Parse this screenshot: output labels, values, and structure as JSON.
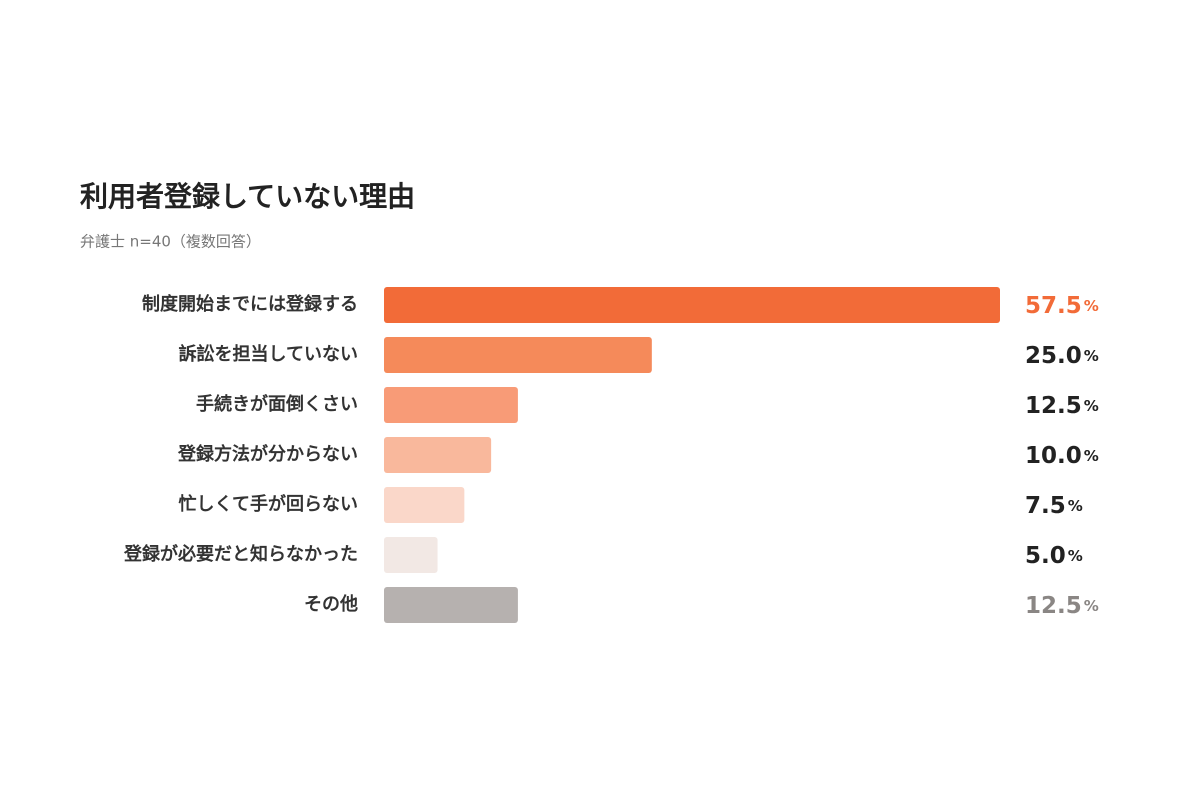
{
  "chart_data": {
    "type": "hbar",
    "title": "利用者登録していない理由",
    "subtitle": "弁護士 n=40（複数回答）",
    "categories": [
      "制度開始までには登録する",
      "訴訟を担当していない",
      "手続きが面倒くさい",
      "登録方法が分からない",
      "忙しくて手が回らない",
      "登録が必要だと知らなかった",
      "その他"
    ],
    "values": [
      57.5,
      25.0,
      12.5,
      10.0,
      7.5,
      5.0,
      12.5
    ],
    "value_labels": [
      "57.5%",
      "25.0%",
      "12.5%",
      "10.0%",
      "7.5%",
      "5.0%",
      "12.5%"
    ],
    "colors": [
      "#f26b38",
      "#f58a5a",
      "#f89b77",
      "#f9b89c",
      "#fad7c9",
      "#f2e8e4",
      "#b6b1af"
    ],
    "value_label_colors": [
      "#f26b38",
      "#222222",
      "#222222",
      "#222222",
      "#222222",
      "#222222",
      "#8a8684"
    ]
  }
}
